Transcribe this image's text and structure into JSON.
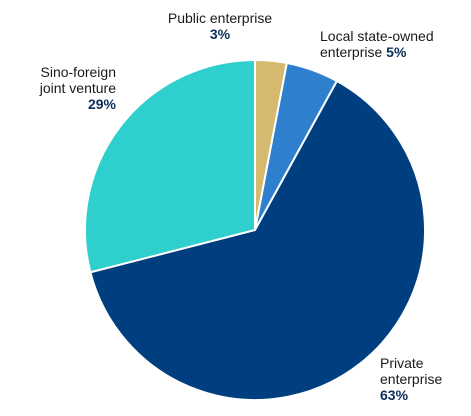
{
  "chart_data": {
    "type": "pie",
    "title": "",
    "slices": [
      {
        "label_lines": [
          "Public enterprise"
        ],
        "pct_text": "3%",
        "value": 3,
        "color": "#d4b96e"
      },
      {
        "label_lines": [
          "Local state-owned",
          "enterprise"
        ],
        "pct_text": "5%",
        "value": 5,
        "color": "#2f7fcf"
      },
      {
        "label_lines": [
          "Private",
          "enterprise"
        ],
        "pct_text": "63%",
        "value": 63,
        "color": "#003f7f"
      },
      {
        "label_lines": [
          "Sino-foreign",
          "joint venture"
        ],
        "pct_text": "29%",
        "value": 29,
        "color": "#2ecfcc"
      }
    ],
    "start_angle_deg": 0,
    "direction": "clockwise",
    "legend": "none"
  }
}
